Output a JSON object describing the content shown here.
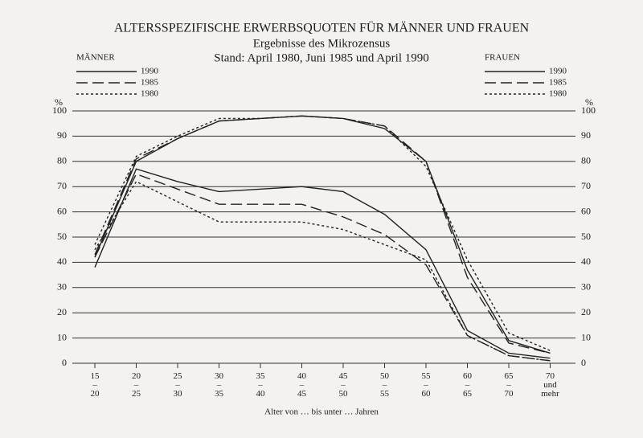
{
  "chart_data": {
    "type": "line",
    "title": "ALTERSSPEZIFISCHE ERWERBSQUOTEN FÜR MÄNNER UND FRAUEN",
    "subtitle": [
      "Ergebnisse des Mikrozensus",
      "Stand: April 1980, Juni 1985 und April 1990"
    ],
    "x_label": "Alter von … bis unter … Jahren",
    "y_unit": "%",
    "categories": [
      "15–20",
      "20–25",
      "25–30",
      "30–35",
      "35–40",
      "40–45",
      "45–50",
      "50–55",
      "55–60",
      "60–65",
      "65–70",
      "70 und mehr"
    ],
    "ylim": [
      0,
      100
    ],
    "yticks": [
      0,
      10,
      20,
      30,
      40,
      50,
      60,
      70,
      80,
      90,
      100
    ],
    "y2lim": [
      0,
      100
    ],
    "y2ticks": [
      0,
      10,
      20,
      30,
      40,
      50,
      60,
      70,
      80,
      90,
      100
    ],
    "grid": true,
    "groups": [
      {
        "name": "MÄNNER",
        "legend": "top-left",
        "series": [
          {
            "name": "1990",
            "color": "#222222",
            "dash": "solid",
            "values": [
              42,
              80,
              89,
              96,
              97,
              98,
              97,
              93,
              80,
              37,
              9,
              4
            ]
          },
          {
            "name": "1985",
            "color": "#222222",
            "dash": "dashed",
            "values": [
              43,
              81,
              89,
              96,
              97,
              98,
              97,
              94,
              80,
              34,
              8,
              4
            ]
          },
          {
            "name": "1980",
            "color": "#222222",
            "dash": "dotted",
            "values": [
              47,
              82,
              90,
              97,
              97,
              98,
              97,
              94,
              78,
              41,
              12,
              5
            ]
          }
        ]
      },
      {
        "name": "FRAUEN",
        "legend": "top-right",
        "series": [
          {
            "name": "1990",
            "color": "#222222",
            "dash": "solid",
            "values": [
              38,
              77,
              72,
              68,
              69,
              70,
              68,
              59,
              45,
              13,
              4,
              2
            ]
          },
          {
            "name": "1985",
            "color": "#222222",
            "dash": "dashed",
            "values": [
              42,
              75,
              69,
              63,
              63,
              63,
              58,
              51,
              39,
              11,
              3,
              1
            ]
          },
          {
            "name": "1980",
            "color": "#222222",
            "dash": "dotted",
            "values": [
              45,
              72,
              64,
              56,
              56,
              56,
              53,
              47,
              41,
              11,
              3,
              1
            ]
          }
        ]
      }
    ]
  }
}
